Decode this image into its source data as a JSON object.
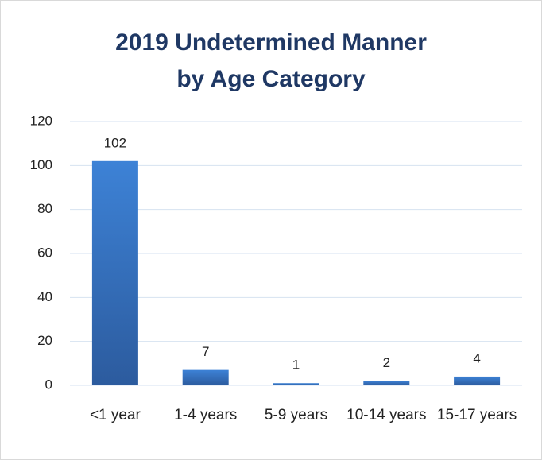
{
  "chart_data": {
    "type": "bar",
    "title": [
      "2019 Undetermined Manner",
      "by Age Category"
    ],
    "categories": [
      "<1 year",
      "1-4 years",
      "5-9 years",
      "10-14 years",
      "15-17 years"
    ],
    "values": [
      102,
      7,
      1,
      2,
      4
    ],
    "color": "#3a7bd0",
    "ylim": [
      0,
      120
    ],
    "yticks": [
      0,
      20,
      40,
      60,
      80,
      100,
      120
    ],
    "grid": true
  }
}
